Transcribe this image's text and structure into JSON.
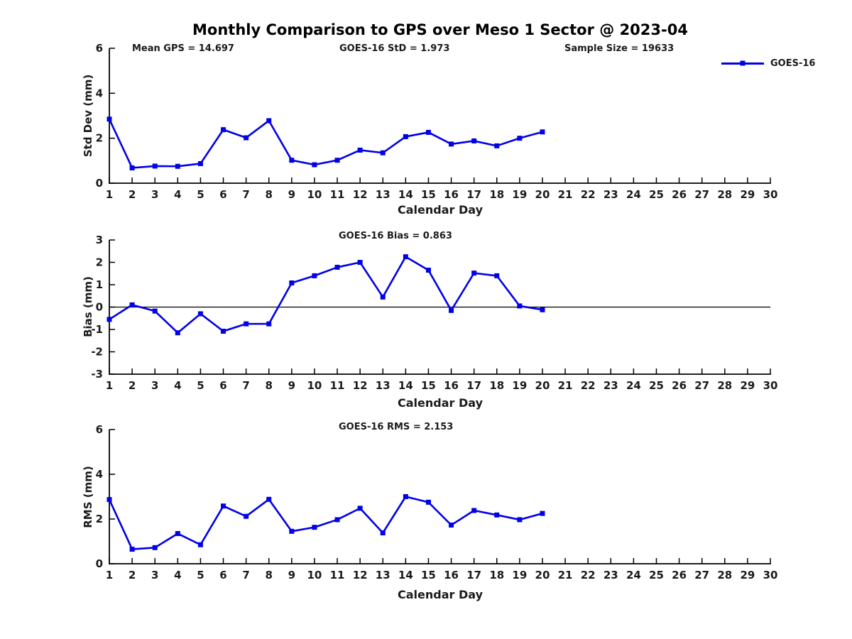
{
  "title": "Monthly Comparison to GPS over Meso 1 Sector @ 2023-04",
  "legend": {
    "label": "GOES-16"
  },
  "colors": {
    "line": "#0000e8",
    "axis": "#000000",
    "text": "#1a1a1a"
  },
  "chart_data": [
    {
      "type": "line",
      "panel": "std-dev",
      "annotations": [
        "Mean GPS = 14.697",
        "GOES-16 StD = 1.973",
        "Sample Size = 19633"
      ],
      "ylabel": "Std Dev (mm)",
      "xlabel": "Calendar Day",
      "xlim": [
        1,
        30
      ],
      "ylim": [
        0,
        6
      ],
      "yticks": [
        0,
        2,
        4,
        6
      ],
      "xticks": [
        1,
        2,
        3,
        4,
        5,
        6,
        7,
        8,
        9,
        10,
        11,
        12,
        13,
        14,
        15,
        16,
        17,
        18,
        19,
        20,
        21,
        22,
        23,
        24,
        25,
        26,
        27,
        28,
        29,
        30
      ],
      "x": [
        1,
        2,
        3,
        4,
        5,
        6,
        7,
        8,
        9,
        10,
        11,
        12,
        13,
        14,
        15,
        16,
        17,
        18,
        19,
        20
      ],
      "series": [
        {
          "name": "GOES-16",
          "values": [
            2.85,
            0.68,
            0.76,
            0.75,
            0.87,
            2.38,
            2.02,
            2.78,
            1.02,
            0.82,
            1.02,
            1.47,
            1.35,
            2.07,
            2.26,
            1.74,
            1.88,
            1.66,
            2.0,
            2.28
          ]
        }
      ],
      "legend_position": "top-right",
      "grid": false
    },
    {
      "type": "line",
      "panel": "bias",
      "title": "GOES-16 Bias = 0.863",
      "ylabel": "Bias (mm)",
      "xlabel": "Calendar Day",
      "xlim": [
        1,
        30
      ],
      "ylim": [
        -3,
        3
      ],
      "yticks": [
        -3,
        -2,
        -1,
        0,
        1,
        2,
        3
      ],
      "xticks": [
        1,
        2,
        3,
        4,
        5,
        6,
        7,
        8,
        9,
        10,
        11,
        12,
        13,
        14,
        15,
        16,
        17,
        18,
        19,
        20,
        21,
        22,
        23,
        24,
        25,
        26,
        27,
        28,
        29,
        30
      ],
      "zero_line": true,
      "x": [
        1,
        2,
        3,
        4,
        5,
        6,
        7,
        8,
        9,
        10,
        11,
        12,
        13,
        14,
        15,
        16,
        17,
        18,
        19,
        20
      ],
      "series": [
        {
          "name": "GOES-16",
          "values": [
            -0.55,
            0.1,
            -0.18,
            -1.15,
            -0.3,
            -1.08,
            -0.75,
            -0.75,
            1.08,
            1.4,
            1.78,
            2.0,
            0.45,
            2.25,
            1.65,
            -0.15,
            1.52,
            1.4,
            0.05,
            -0.12
          ]
        }
      ],
      "grid": false
    },
    {
      "type": "line",
      "panel": "rms",
      "title": "GOES-16 RMS = 2.153",
      "ylabel": "RMS (mm)",
      "xlabel": "Calendar Day",
      "xlim": [
        1,
        30
      ],
      "ylim": [
        0,
        6
      ],
      "yticks": [
        0,
        2,
        4,
        6
      ],
      "xticks": [
        1,
        2,
        3,
        4,
        5,
        6,
        7,
        8,
        9,
        10,
        11,
        12,
        13,
        14,
        15,
        16,
        17,
        18,
        19,
        20,
        21,
        22,
        23,
        24,
        25,
        26,
        27,
        28,
        29,
        30
      ],
      "x": [
        1,
        2,
        3,
        4,
        5,
        6,
        7,
        8,
        9,
        10,
        11,
        12,
        13,
        14,
        15,
        16,
        17,
        18,
        19,
        20
      ],
      "series": [
        {
          "name": "GOES-16",
          "values": [
            2.87,
            0.65,
            0.72,
            1.35,
            0.85,
            2.58,
            2.12,
            2.88,
            1.45,
            1.63,
            1.97,
            2.48,
            1.38,
            3.0,
            2.75,
            1.73,
            2.38,
            2.18,
            1.97,
            2.25
          ]
        }
      ],
      "grid": false
    }
  ]
}
